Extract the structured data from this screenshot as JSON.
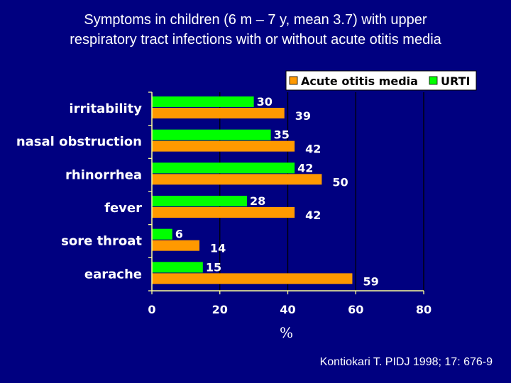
{
  "slide": {
    "title_line1": "Symptoms in children (6 m – 7 y, mean 3.7) with upper",
    "title_line2": "respiratory tract infections with or without acute otitis media",
    "citation": "Kontiokari T. PIDJ 1998; 17: 676-9"
  },
  "colors": {
    "background": "#000080",
    "aom": "#FF9900",
    "urti": "#00FF00",
    "axis": "#FFFF99"
  },
  "chart_data": {
    "type": "bar",
    "orientation": "horizontal",
    "categories": [
      "irritability",
      "nasal obstruction",
      "rhinorrhea",
      "fever",
      "sore throat",
      "earache"
    ],
    "series": [
      {
        "name": "URTI",
        "values": [
          30,
          35,
          42,
          28,
          6,
          15
        ]
      },
      {
        "name": "Acute otitis media",
        "values": [
          39,
          42,
          50,
          42,
          14,
          59
        ]
      }
    ],
    "legend": [
      "Acute otitis media",
      "URTI"
    ],
    "legend_position": "top-right",
    "xticks": [
      0,
      20,
      40,
      60,
      80
    ],
    "xlim": [
      0,
      80
    ],
    "xlabel": "%",
    "ylabel": "",
    "grid": "vertical"
  }
}
